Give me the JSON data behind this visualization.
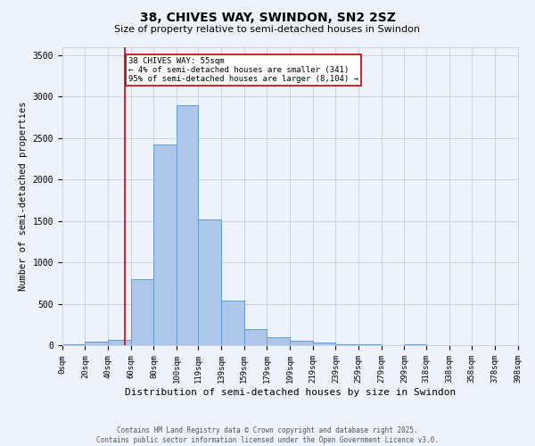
{
  "title1": "38, CHIVES WAY, SWINDON, SN2 2SZ",
  "title2": "Size of property relative to semi-detached houses in Swindon",
  "xlabel": "Distribution of semi-detached houses by size in Swindon",
  "ylabel": "Number of semi-detached properties",
  "footnote1": "Contains HM Land Registry data © Crown copyright and database right 2025.",
  "footnote2": "Contains public sector information licensed under the Open Government Licence v3.0.",
  "annotation_line1": "38 CHIVES WAY: 55sqm",
  "annotation_line2": "← 4% of semi-detached houses are smaller (341)",
  "annotation_line3": "95% of semi-detached houses are larger (8,104) →",
  "bar_left_edges": [
    0,
    20,
    40,
    60,
    80,
    100,
    119,
    139,
    159,
    179,
    199,
    219,
    239,
    259,
    279,
    299,
    318,
    338,
    358,
    378
  ],
  "bar_widths": [
    20,
    20,
    20,
    20,
    20,
    19,
    20,
    20,
    20,
    20,
    20,
    20,
    20,
    20,
    20,
    19,
    20,
    20,
    20,
    20
  ],
  "bar_heights": [
    20,
    50,
    70,
    800,
    2420,
    2900,
    1520,
    540,
    200,
    100,
    60,
    35,
    20,
    15,
    5,
    20,
    2,
    1,
    0,
    0
  ],
  "bar_color": "#aec6e8",
  "bar_edge_color": "#5a9fd4",
  "marker_x": 55,
  "marker_color": "#cc0000",
  "ylim": [
    0,
    3600
  ],
  "xlim": [
    0,
    398
  ],
  "yticks": [
    0,
    500,
    1000,
    1500,
    2000,
    2500,
    3000,
    3500
  ],
  "xtick_labels": [
    "0sqm",
    "20sqm",
    "40sqm",
    "60sqm",
    "80sqm",
    "100sqm",
    "119sqm",
    "139sqm",
    "159sqm",
    "179sqm",
    "199sqm",
    "219sqm",
    "239sqm",
    "259sqm",
    "279sqm",
    "299sqm",
    "318sqm",
    "338sqm",
    "358sqm",
    "378sqm",
    "398sqm"
  ],
  "xtick_positions": [
    0,
    20,
    40,
    60,
    80,
    100,
    119,
    139,
    159,
    179,
    199,
    219,
    239,
    259,
    279,
    299,
    318,
    338,
    358,
    378,
    398
  ],
  "annotation_box_color": "#cc0000",
  "annotation_box_fill": "#ffffff",
  "grid_color": "#c8d4e8",
  "background_color": "#eef2fa",
  "title1_fontsize": 10,
  "title2_fontsize": 8,
  "xlabel_fontsize": 8,
  "ylabel_fontsize": 7.5,
  "tick_fontsize": 6.5,
  "annot_fontsize": 6.5,
  "footnote_fontsize": 5.5
}
